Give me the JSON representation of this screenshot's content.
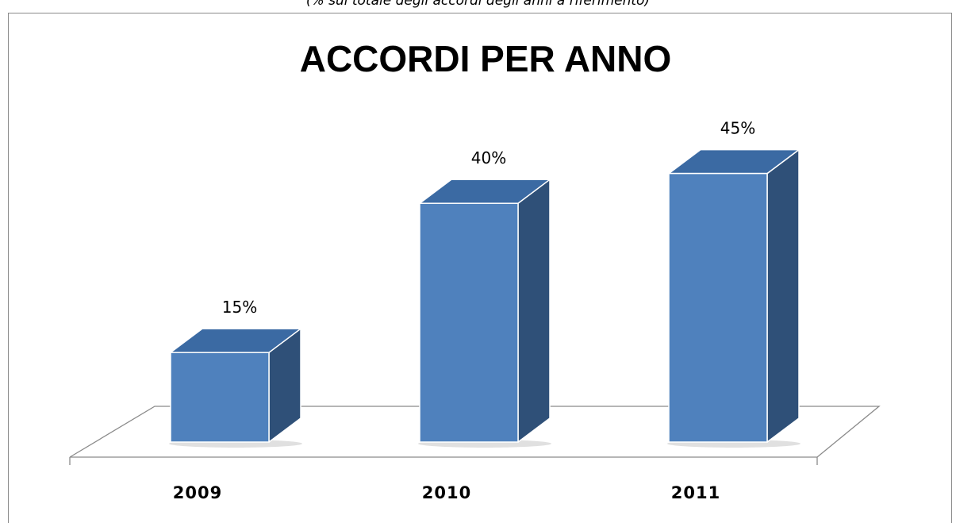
{
  "caption": "(% sul totale degli accordi degli anni a riferimento)",
  "chart_data": {
    "type": "bar",
    "style": "3d-column",
    "title": "ACCORDI PER ANNO",
    "categories": [
      "2009",
      "2010",
      "2011"
    ],
    "values": [
      15,
      40,
      45
    ],
    "value_labels": [
      "15%",
      "40%",
      "45%"
    ],
    "unit": "%",
    "ylim": [
      0,
      50
    ],
    "grid": false,
    "legend": "none",
    "colors": {
      "front": "#4f81bd",
      "side": "#2f5078",
      "top": "#3b6aa3",
      "floor_line": "#8a8a8a"
    }
  }
}
